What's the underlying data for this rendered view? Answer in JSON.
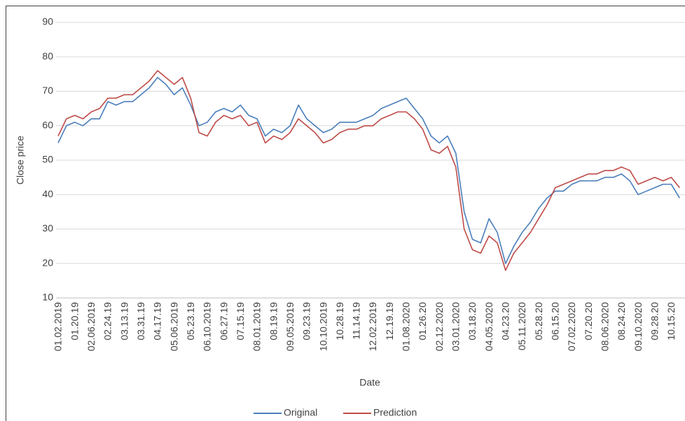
{
  "chart_data": {
    "type": "line",
    "x_label": "Date",
    "y_label": "Close price",
    "categories": [
      "01.02.2019",
      null,
      "01.20.19",
      null,
      "02.06.2019",
      null,
      "02.24.19",
      null,
      "03.13.19",
      null,
      "03.31.19",
      null,
      "04.17.19",
      null,
      "05.06.2019",
      null,
      "05.23.19",
      null,
      "06.10.2019",
      null,
      "06.27.19",
      null,
      "07.15.19",
      null,
      "08.01.2019",
      null,
      "08.19.19",
      null,
      "09.05.2019",
      null,
      "09.23.19",
      null,
      "10.10.2019",
      null,
      "10.28.19",
      null,
      "11.14.19",
      null,
      "12.02.2019",
      null,
      "12.19.19",
      null,
      "01.08.2020",
      null,
      "01.26.20",
      null,
      "02.12.2020",
      null,
      "03.01.2020",
      null,
      "03.18.20",
      null,
      "04.05.2020",
      null,
      "04.23.20",
      null,
      "05.11.2020",
      null,
      "05.28.20",
      null,
      "06.15.20",
      null,
      "07.02.2020",
      null,
      "07.20.20",
      null,
      "08.06.2020",
      null,
      "08.24.20",
      null,
      "09.10.2020",
      null,
      "09.28.20",
      null,
      "10.15.20",
      null
    ],
    "series": [
      {
        "name": "Original",
        "color": "#4a7ebb",
        "values": [
          55,
          60,
          61,
          60,
          62,
          62,
          67,
          66,
          67,
          67,
          69,
          71,
          74,
          72,
          69,
          71,
          66,
          60,
          61,
          64,
          65,
          64,
          66,
          63,
          62,
          57,
          59,
          58,
          60,
          66,
          62,
          60,
          58,
          59,
          61,
          61,
          61,
          62,
          63,
          65,
          66,
          67,
          68,
          65,
          62,
          57,
          55,
          57,
          52,
          35,
          27,
          26,
          33,
          29,
          20,
          25,
          29,
          32,
          36,
          39,
          41,
          41,
          43,
          44,
          44,
          44,
          45,
          45,
          46,
          44,
          40,
          41,
          42,
          43,
          43,
          39
        ]
      },
      {
        "name": "Prediction",
        "color": "#be4b48",
        "values": [
          57,
          62,
          63,
          62,
          64,
          65,
          68,
          68,
          69,
          69,
          71,
          73,
          76,
          74,
          72,
          74,
          68,
          58,
          57,
          61,
          63,
          62,
          63,
          60,
          61,
          55,
          57,
          56,
          58,
          62,
          60,
          58,
          55,
          56,
          58,
          59,
          59,
          60,
          60,
          62,
          63,
          64,
          64,
          62,
          59,
          53,
          52,
          54,
          48,
          30,
          24,
          23,
          28,
          26,
          18,
          23,
          26,
          29,
          33,
          37,
          42,
          43,
          44,
          45,
          46,
          46,
          47,
          47,
          48,
          47,
          43,
          44,
          45,
          44,
          45,
          42
        ]
      }
    ],
    "ylim": [
      10,
      90
    ],
    "yticks": [
      10,
      20,
      30,
      40,
      50,
      60,
      70,
      80,
      90
    ],
    "grid": true,
    "legend": "bottom"
  }
}
